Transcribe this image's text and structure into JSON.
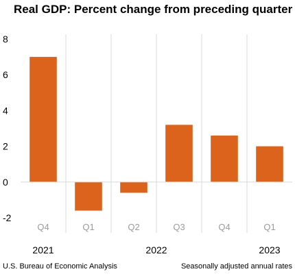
{
  "chart_data": {
    "type": "bar",
    "title": "Real GDP:  Percent change from preceding quarter",
    "categories": [
      "Q4",
      "Q1",
      "Q2",
      "Q3",
      "Q4",
      "Q1"
    ],
    "years": [
      {
        "label": "2021",
        "under_category_index": 0
      },
      {
        "label": "2022",
        "under_category_index": 2.5
      },
      {
        "label": "2023",
        "under_category_index": 5
      }
    ],
    "values": [
      7.0,
      -1.6,
      -0.6,
      3.2,
      2.6,
      2.0
    ],
    "ylim": [
      -2,
      8
    ],
    "yticks": [
      "-2",
      "0",
      "2",
      "4",
      "6",
      "8"
    ],
    "xlabel": "",
    "ylabel": "",
    "grid": "vertical separators",
    "legend": "none"
  },
  "colors": {
    "bar": "#DB631B",
    "separator": "#D9D9D9",
    "tick_label": "#000000",
    "category_label": "#9A9A9A"
  },
  "footer": {
    "source": "U.S. Bureau of Economic Analysis",
    "note": "Seasonally adjusted annual rates"
  }
}
